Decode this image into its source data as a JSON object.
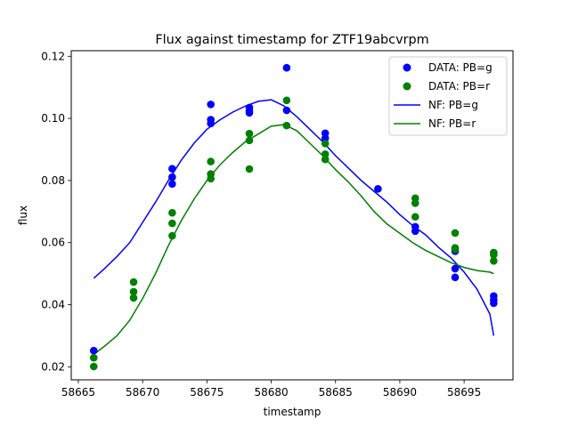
{
  "chart_data": {
    "type": "scatter",
    "title": "Flux against timestamp for ZTF19abcvrpm",
    "xlabel": "timestamp",
    "ylabel": "flux",
    "xlim": [
      58664.45,
      58698.8
    ],
    "ylim": [
      0.0158,
      0.1218
    ],
    "xticks": [
      58665,
      58670,
      58675,
      58680,
      58685,
      58690,
      58695
    ],
    "yticks": [
      0.02,
      0.04,
      0.06,
      0.08,
      0.1,
      0.12
    ],
    "xtick_labels": [
      "58665",
      "58670",
      "58675",
      "58680",
      "58685",
      "58690",
      "58695"
    ],
    "ytick_labels": [
      "0.02",
      "0.04",
      "0.06",
      "0.08",
      "0.10",
      "0.12"
    ],
    "grid": false,
    "legend_position": "top-right",
    "colors": {
      "g": "#0000ff",
      "r": "#008000"
    },
    "series": [
      {
        "name": "DATA: PB=g",
        "kind": "scatter",
        "color": "#0000ff",
        "points": [
          [
            58666.2,
            0.0252
          ],
          [
            58672.3,
            0.0838
          ],
          [
            58672.3,
            0.0811
          ],
          [
            58672.3,
            0.0789
          ],
          [
            58675.3,
            0.1045
          ],
          [
            58675.3,
            0.0996
          ],
          [
            58675.3,
            0.0984
          ],
          [
            58678.3,
            0.1035
          ],
          [
            58678.3,
            0.1024
          ],
          [
            58678.3,
            0.1018
          ],
          [
            58681.2,
            0.1163
          ],
          [
            58681.2,
            0.1026
          ],
          [
            58684.2,
            0.0952
          ],
          [
            58684.2,
            0.0936
          ],
          [
            58688.3,
            0.0773
          ],
          [
            58691.2,
            0.0651
          ],
          [
            58691.2,
            0.0637
          ],
          [
            58694.3,
            0.0572
          ],
          [
            58694.3,
            0.0516
          ],
          [
            58694.3,
            0.0488
          ],
          [
            58697.3,
            0.0428
          ],
          [
            58697.3,
            0.0415
          ],
          [
            58697.3,
            0.0405
          ]
        ]
      },
      {
        "name": "DATA: PB=r",
        "kind": "scatter",
        "color": "#008000",
        "points": [
          [
            58666.2,
            0.0229
          ],
          [
            58666.2,
            0.0201
          ],
          [
            58669.3,
            0.0473
          ],
          [
            58669.3,
            0.0442
          ],
          [
            58669.3,
            0.0422
          ],
          [
            58672.3,
            0.0696
          ],
          [
            58672.3,
            0.0662
          ],
          [
            58672.3,
            0.0622
          ],
          [
            58675.3,
            0.0861
          ],
          [
            58675.3,
            0.0821
          ],
          [
            58675.3,
            0.0806
          ],
          [
            58678.3,
            0.0951
          ],
          [
            58678.3,
            0.0929
          ],
          [
            58678.3,
            0.0837
          ],
          [
            58681.2,
            0.1058
          ],
          [
            58681.2,
            0.0977
          ],
          [
            58684.2,
            0.0919
          ],
          [
            58684.2,
            0.0885
          ],
          [
            58684.2,
            0.0868
          ],
          [
            58691.2,
            0.0743
          ],
          [
            58691.2,
            0.0727
          ],
          [
            58691.2,
            0.0683
          ],
          [
            58694.3,
            0.0631
          ],
          [
            58694.3,
            0.0583
          ],
          [
            58694.3,
            0.0578
          ],
          [
            58697.3,
            0.0568
          ],
          [
            58697.3,
            0.0561
          ],
          [
            58697.3,
            0.0541
          ]
        ]
      },
      {
        "name": "NF: PB=g",
        "kind": "line",
        "color": "#0000ff",
        "x": [
          58666.2,
          58667,
          58668,
          58669,
          58670,
          58671,
          58672,
          58673,
          58674,
          58675,
          58676,
          58677,
          58678,
          58679,
          58680,
          58681,
          58682,
          58683,
          58684,
          58685,
          58686,
          58687,
          58688,
          58689,
          58690,
          58691,
          58692,
          58693,
          58694,
          58695,
          58696,
          58697,
          58697.3
        ],
        "y": [
          0.0485,
          0.0515,
          0.0555,
          0.06,
          0.0665,
          0.073,
          0.08,
          0.0865,
          0.092,
          0.0965,
          0.0995,
          0.102,
          0.104,
          0.1055,
          0.106,
          0.104,
          0.1005,
          0.0965,
          0.0925,
          0.088,
          0.084,
          0.08,
          0.0765,
          0.073,
          0.069,
          0.0655,
          0.0625,
          0.0585,
          0.055,
          0.0505,
          0.045,
          0.037,
          0.03
        ]
      },
      {
        "name": "NF: PB=r",
        "kind": "line",
        "color": "#008000",
        "x": [
          58666.2,
          58667,
          58668,
          58669,
          58670,
          58671,
          58672,
          58673,
          58674,
          58675,
          58676,
          58677,
          58678,
          58679,
          58680,
          58681,
          58682,
          58683,
          58684,
          58685,
          58686,
          58687,
          58688,
          58689,
          58690,
          58691,
          58692,
          58693,
          58694,
          58695,
          58696,
          58697,
          58697.3
        ],
        "y": [
          0.024,
          0.0265,
          0.03,
          0.035,
          0.042,
          0.05,
          0.059,
          0.067,
          0.074,
          0.08,
          0.085,
          0.089,
          0.0925,
          0.095,
          0.0975,
          0.098,
          0.096,
          0.092,
          0.088,
          0.0835,
          0.0795,
          0.075,
          0.07,
          0.066,
          0.063,
          0.06,
          0.0575,
          0.0555,
          0.0535,
          0.052,
          0.051,
          0.0505,
          0.05
        ]
      }
    ]
  }
}
